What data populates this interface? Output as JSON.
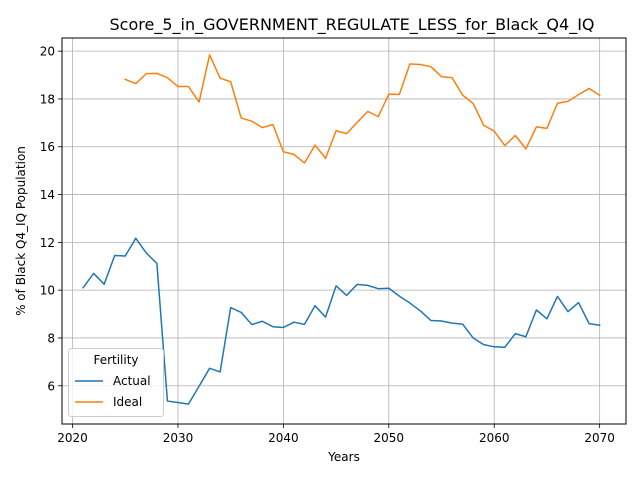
{
  "chart_data": {
    "type": "line",
    "title": "Score_5_in_GOVERNMENT_REGULATE_LESS_for_Black_Q4_IQ",
    "xlabel": "Years",
    "ylabel": "% of Black Q4_IQ Population",
    "xlim": [
      2019,
      2072.5
    ],
    "ylim": [
      4.4,
      20.55
    ],
    "xticks": [
      2020,
      2030,
      2040,
      2050,
      2060,
      2070
    ],
    "yticks": [
      6,
      8,
      10,
      12,
      14,
      16,
      18,
      20
    ],
    "grid": true,
    "legend": {
      "title": "Fertility",
      "placement": "lower-left"
    },
    "series": [
      {
        "name": "Actual",
        "color": "#1f77b4",
        "x": [
          2021,
          2022,
          2023,
          2024,
          2025,
          2026,
          2027,
          2028,
          2029,
          2030,
          2031,
          2032,
          2033,
          2034,
          2035,
          2036,
          2037,
          2038,
          2039,
          2040,
          2041,
          2042,
          2043,
          2044,
          2045,
          2046,
          2047,
          2048,
          2049,
          2050,
          2051,
          2052,
          2053,
          2054,
          2055,
          2056,
          2057,
          2058,
          2059,
          2060,
          2061,
          2062,
          2063,
          2064,
          2065,
          2066,
          2067,
          2068,
          2069,
          2070
        ],
        "y": [
          10.1,
          10.7,
          10.25,
          11.45,
          11.43,
          12.17,
          11.55,
          11.12,
          5.36,
          5.3,
          5.23,
          5.98,
          6.73,
          6.58,
          9.27,
          9.07,
          8.56,
          8.7,
          8.47,
          8.44,
          8.66,
          8.57,
          9.35,
          8.87,
          10.18,
          9.78,
          10.24,
          10.2,
          10.06,
          10.08,
          9.75,
          9.46,
          9.13,
          8.73,
          8.71,
          8.62,
          8.58,
          8.0,
          7.72,
          7.63,
          7.61,
          8.18,
          8.05,
          9.17,
          8.8,
          9.74,
          9.1,
          9.48,
          8.6,
          8.53
        ]
      },
      {
        "name": "Ideal",
        "color": "#ff7f0e",
        "x": [
          2025,
          2026,
          2027,
          2028,
          2029,
          2030,
          2031,
          2032,
          2033,
          2034,
          2035,
          2036,
          2037,
          2038,
          2039,
          2040,
          2041,
          2042,
          2043,
          2044,
          2045,
          2046,
          2047,
          2048,
          2049,
          2050,
          2051,
          2052,
          2053,
          2054,
          2055,
          2056,
          2057,
          2058,
          2059,
          2060,
          2061,
          2062,
          2063,
          2064,
          2065,
          2066,
          2067,
          2068,
          2069,
          2070
        ],
        "y": [
          18.82,
          18.64,
          19.06,
          19.07,
          18.89,
          18.52,
          18.52,
          17.87,
          19.84,
          18.87,
          18.72,
          17.2,
          17.07,
          16.8,
          16.93,
          15.79,
          15.68,
          15.32,
          16.07,
          15.52,
          16.67,
          16.55,
          17.02,
          17.48,
          17.26,
          18.2,
          18.19,
          19.46,
          19.44,
          19.35,
          18.93,
          18.89,
          18.16,
          17.81,
          16.9,
          16.65,
          16.05,
          16.47,
          15.91,
          16.83,
          16.77,
          17.82,
          17.9,
          18.18,
          18.44,
          18.15
        ]
      }
    ]
  }
}
